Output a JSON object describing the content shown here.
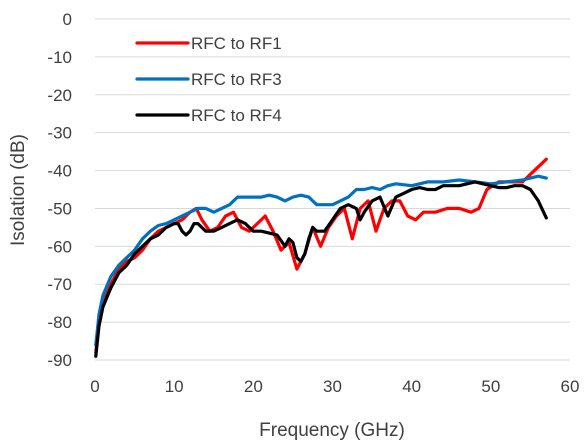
{
  "chart_data": {
    "type": "line",
    "xlabel": "Frequency (GHz)",
    "ylabel": "Isolation (dB)",
    "xlim": [
      0,
      60
    ],
    "ylim": [
      -90,
      0
    ],
    "xticks": [
      0,
      10,
      20,
      30,
      40,
      50,
      60
    ],
    "yticks": [
      0,
      -10,
      -20,
      -30,
      -40,
      -50,
      -60,
      -70,
      -80,
      -90
    ],
    "grid": "horizontal",
    "legend_position": "top-left",
    "series": [
      {
        "name": "RFC to RF1",
        "color": "#ff0000",
        "points": [
          [
            0.1,
            -88
          ],
          [
            0.5,
            -80
          ],
          [
            1,
            -75
          ],
          [
            2,
            -70
          ],
          [
            3,
            -66
          ],
          [
            4,
            -64
          ],
          [
            5,
            -63
          ],
          [
            6,
            -61
          ],
          [
            7,
            -58
          ],
          [
            8,
            -56
          ],
          [
            9,
            -55
          ],
          [
            10,
            -54
          ],
          [
            11,
            -53
          ],
          [
            12,
            -51
          ],
          [
            12.8,
            -50
          ],
          [
            13.5,
            -53
          ],
          [
            14.5,
            -56
          ],
          [
            15.5,
            -55
          ],
          [
            16.5,
            -52
          ],
          [
            17.5,
            -51
          ],
          [
            18.5,
            -55
          ],
          [
            19.5,
            -56
          ],
          [
            20.5,
            -54
          ],
          [
            21.5,
            -52
          ],
          [
            22.5,
            -56
          ],
          [
            23.5,
            -61
          ],
          [
            24.5,
            -59
          ],
          [
            25.5,
            -66
          ],
          [
            26.5,
            -62
          ],
          [
            27.5,
            -55
          ],
          [
            28.5,
            -60
          ],
          [
            29.5,
            -55
          ],
          [
            30.5,
            -52
          ],
          [
            31.5,
            -50
          ],
          [
            32.5,
            -58
          ],
          [
            33.5,
            -50
          ],
          [
            34.5,
            -48
          ],
          [
            35.5,
            -56
          ],
          [
            36.5,
            -50
          ],
          [
            37.5,
            -48
          ],
          [
            38.5,
            -48
          ],
          [
            39.5,
            -52
          ],
          [
            40.5,
            -53
          ],
          [
            41.5,
            -51
          ],
          [
            43,
            -51
          ],
          [
            44.5,
            -50
          ],
          [
            46,
            -50
          ],
          [
            47.5,
            -51
          ],
          [
            48.5,
            -50
          ],
          [
            49.5,
            -45
          ],
          [
            51,
            -43
          ],
          [
            52.5,
            -43
          ],
          [
            54,
            -43
          ],
          [
            55,
            -41
          ],
          [
            56,
            -39
          ],
          [
            57,
            -37
          ]
        ]
      },
      {
        "name": "RFC to RF3",
        "color": "#0070c0",
        "points": [
          [
            0.1,
            -86
          ],
          [
            0.5,
            -78
          ],
          [
            1,
            -73
          ],
          [
            2,
            -68
          ],
          [
            3,
            -65
          ],
          [
            4,
            -63
          ],
          [
            5,
            -61
          ],
          [
            6,
            -58
          ],
          [
            7,
            -56
          ],
          [
            8,
            -54.5
          ],
          [
            9,
            -54
          ],
          [
            10,
            -53
          ],
          [
            11,
            -52
          ],
          [
            12,
            -51
          ],
          [
            13,
            -50
          ],
          [
            14,
            -50
          ],
          [
            15,
            -51
          ],
          [
            16,
            -50
          ],
          [
            17,
            -49
          ],
          [
            18,
            -47
          ],
          [
            19,
            -47
          ],
          [
            20,
            -47
          ],
          [
            21,
            -47
          ],
          [
            22,
            -46.5
          ],
          [
            23,
            -47
          ],
          [
            24,
            -48
          ],
          [
            25,
            -47
          ],
          [
            26,
            -46.5
          ],
          [
            27,
            -47
          ],
          [
            28,
            -49
          ],
          [
            29,
            -49
          ],
          [
            30,
            -49
          ],
          [
            31,
            -48
          ],
          [
            32,
            -47
          ],
          [
            33,
            -45
          ],
          [
            34,
            -45
          ],
          [
            35,
            -44.5
          ],
          [
            36,
            -45
          ],
          [
            37,
            -44
          ],
          [
            38,
            -43.5
          ],
          [
            40,
            -44
          ],
          [
            42,
            -43
          ],
          [
            44,
            -43
          ],
          [
            46,
            -42.5
          ],
          [
            48,
            -43
          ],
          [
            50,
            -43.5
          ],
          [
            52,
            -43
          ],
          [
            54,
            -42.5
          ],
          [
            55,
            -42
          ],
          [
            56,
            -41.5
          ],
          [
            57,
            -42
          ]
        ]
      },
      {
        "name": "RFC to RF4",
        "color": "#000000",
        "points": [
          [
            0.1,
            -89
          ],
          [
            0.5,
            -81
          ],
          [
            1,
            -76
          ],
          [
            2,
            -71
          ],
          [
            3,
            -67
          ],
          [
            4,
            -65
          ],
          [
            5,
            -62
          ],
          [
            6,
            -60
          ],
          [
            7,
            -58
          ],
          [
            8,
            -57
          ],
          [
            9,
            -55
          ],
          [
            10,
            -54
          ],
          [
            10.5,
            -54
          ],
          [
            11,
            -56
          ],
          [
            11.5,
            -57
          ],
          [
            12,
            -56
          ],
          [
            12.5,
            -54
          ],
          [
            13,
            -54
          ],
          [
            14,
            -56
          ],
          [
            15,
            -56
          ],
          [
            16,
            -55
          ],
          [
            17,
            -54
          ],
          [
            18,
            -53
          ],
          [
            19,
            -54
          ],
          [
            20,
            -56
          ],
          [
            21,
            -56
          ],
          [
            22,
            -56.5
          ],
          [
            23,
            -57
          ],
          [
            24,
            -60
          ],
          [
            24.5,
            -58
          ],
          [
            25,
            -59
          ],
          [
            25.5,
            -63
          ],
          [
            26,
            -64
          ],
          [
            26.5,
            -62
          ],
          [
            27,
            -58
          ],
          [
            27.5,
            -55
          ],
          [
            28,
            -56
          ],
          [
            28.5,
            -56
          ],
          [
            29,
            -56
          ],
          [
            30,
            -53
          ],
          [
            31,
            -50
          ],
          [
            32,
            -49
          ],
          [
            33,
            -50
          ],
          [
            33.5,
            -53
          ],
          [
            34,
            -51
          ],
          [
            35,
            -48
          ],
          [
            36,
            -47
          ],
          [
            37,
            -52
          ],
          [
            38,
            -47
          ],
          [
            39,
            -46
          ],
          [
            40,
            -45
          ],
          [
            41,
            -44.5
          ],
          [
            42,
            -45
          ],
          [
            43,
            -45
          ],
          [
            44,
            -44
          ],
          [
            45,
            -44
          ],
          [
            46,
            -44
          ],
          [
            47,
            -43.5
          ],
          [
            48,
            -43
          ],
          [
            49,
            -43.5
          ],
          [
            50,
            -44
          ],
          [
            51,
            -44.5
          ],
          [
            52,
            -44.5
          ],
          [
            53,
            -44
          ],
          [
            54,
            -44
          ],
          [
            55,
            -45
          ],
          [
            56,
            -48
          ],
          [
            57,
            -52.5
          ]
        ]
      }
    ]
  }
}
